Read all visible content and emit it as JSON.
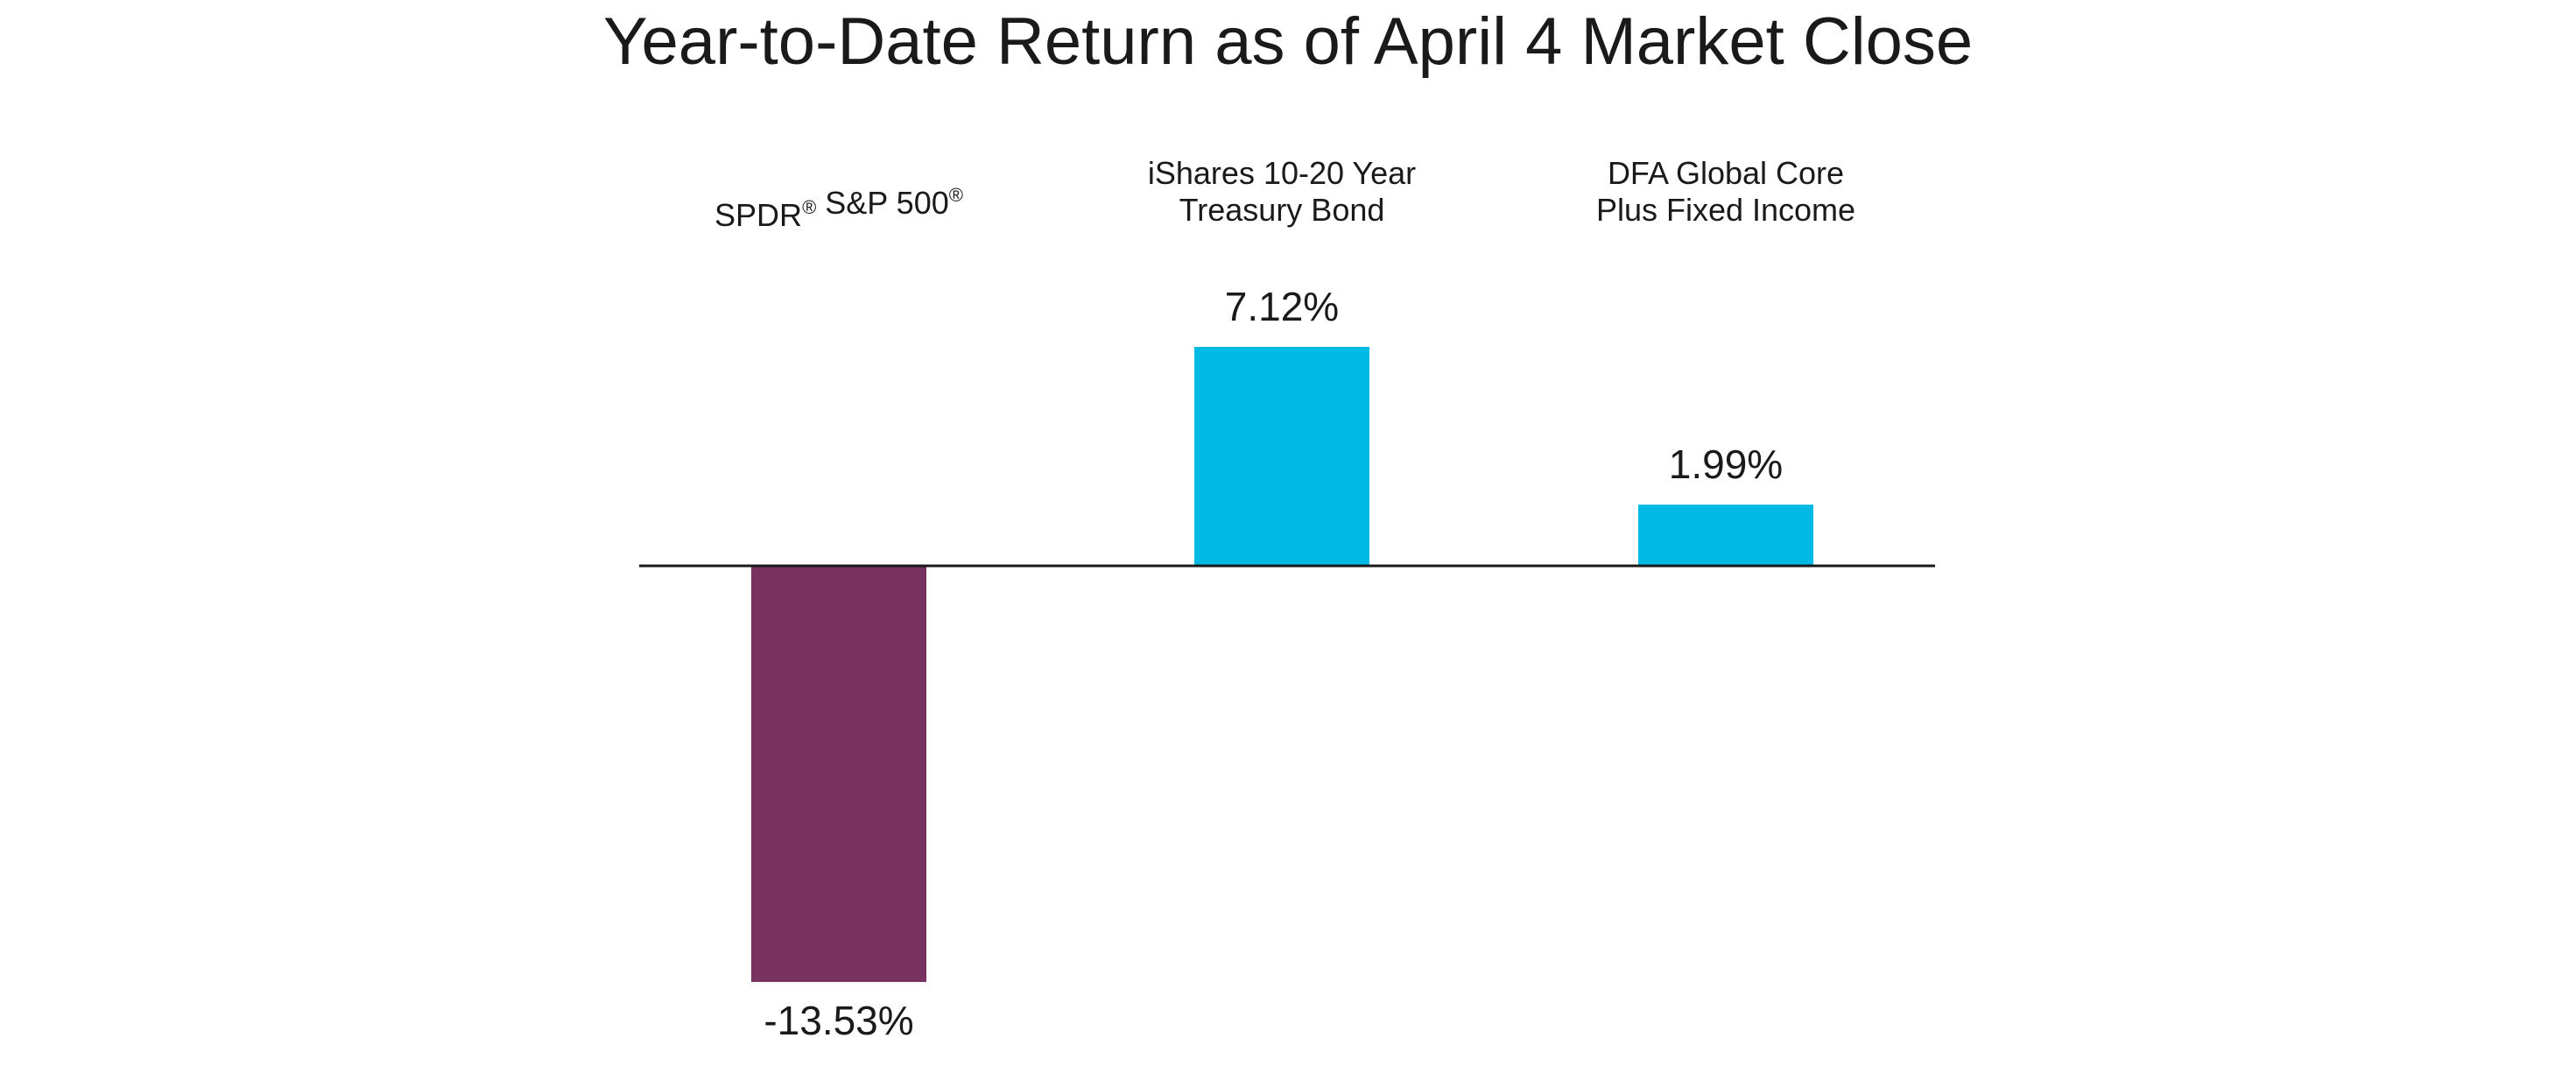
{
  "chart_data": {
    "type": "bar",
    "title": "Year-to-Date Return as of April 4 Market Close",
    "xlabel": "",
    "ylabel": "",
    "ylim": [
      -13.53,
      7.12
    ],
    "grid": false,
    "legend": "none",
    "value_suffix": "%",
    "categories": [
      {
        "lines": [
          [
            {
              "t": "SPDR"
            },
            {
              "t": "®",
              "sup": true
            },
            {
              "t": " S&P 500"
            },
            {
              "t": "®",
              "sup": true
            }
          ]
        ]
      },
      {
        "lines": [
          [
            {
              "t": "iShares 10-20 Year"
            }
          ],
          [
            {
              "t": "Treasury Bond"
            }
          ]
        ]
      },
      {
        "lines": [
          [
            {
              "t": "DFA Global Core"
            }
          ],
          [
            {
              "t": "Plus Fixed Income"
            }
          ]
        ]
      }
    ],
    "values": [
      -13.53,
      7.12,
      1.99
    ],
    "value_labels": [
      "-13.53%",
      "7.12%",
      "1.99%"
    ],
    "colors": [
      "#77325F",
      "#00B9E4",
      "#00B9E4"
    ],
    "baseline_color": "#1a1a1a"
  }
}
